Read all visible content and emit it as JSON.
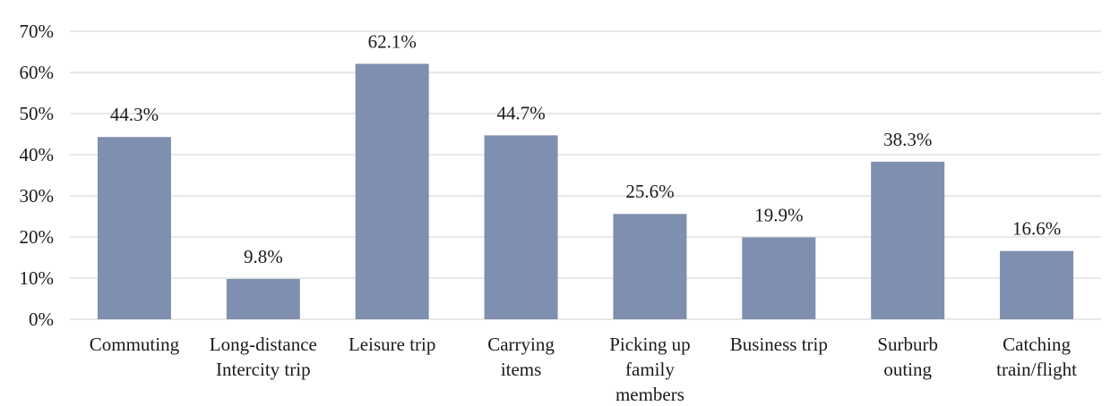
{
  "chart_data": {
    "type": "bar",
    "categories": [
      [
        "Commuting"
      ],
      [
        "Long-distance",
        "Intercity trip"
      ],
      [
        "Leisure trip"
      ],
      [
        "Carrying",
        "items"
      ],
      [
        "Picking up",
        "family",
        "members"
      ],
      [
        "Business trip"
      ],
      [
        "Surburb",
        "outing"
      ],
      [
        "Catching",
        "train/flight"
      ]
    ],
    "values": [
      44.3,
      9.8,
      62.1,
      44.7,
      25.6,
      19.9,
      38.3,
      16.6
    ],
    "data_labels": [
      "44.3%",
      "9.8%",
      "62.1%",
      "44.7%",
      "25.6%",
      "19.9%",
      "38.3%",
      "16.6%"
    ],
    "yticks": [
      "0%",
      "10%",
      "20%",
      "30%",
      "40%",
      "50%",
      "60%",
      "70%"
    ],
    "ylim": [
      0,
      70
    ],
    "grid": true,
    "bar_color": "#7f8faf",
    "legend": false
  }
}
